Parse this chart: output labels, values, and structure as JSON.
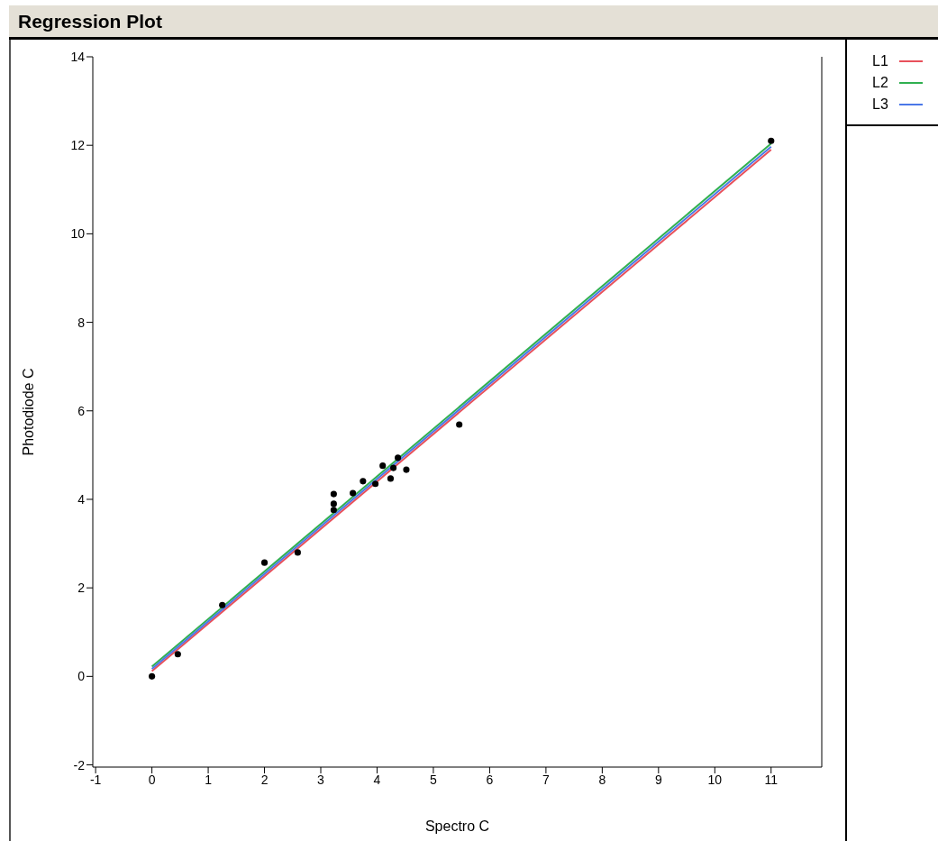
{
  "chart_data": {
    "type": "scatter",
    "title": "Regression Plot",
    "xlabel": "Spectro C",
    "ylabel": "Photodiode C",
    "xlim": [
      -1.05,
      11.9
    ],
    "xticks": [
      -1,
      0,
      1,
      2,
      3,
      4,
      5,
      6,
      7,
      8,
      9,
      10,
      11
    ],
    "ylim": [
      -2.05,
      14
    ],
    "yticks": [
      -2,
      0,
      2,
      4,
      6,
      8,
      10,
      12,
      14
    ],
    "grid": false,
    "legend": "top right",
    "series": [
      {
        "marker": "circle",
        "color": "#000000",
        "x": [
          0,
          0.46,
          1.25,
          2.0,
          2.59,
          3.23,
          3.23,
          3.23,
          3.57,
          3.75,
          3.97,
          4.1,
          4.24,
          4.29,
          4.37,
          4.52,
          5.46,
          11.0
        ],
        "values": [
          0,
          0.5,
          1.61,
          2.57,
          2.8,
          4.12,
          3.9,
          3.76,
          4.14,
          4.41,
          4.35,
          4.76,
          4.47,
          4.71,
          4.94,
          4.67,
          5.69,
          12.1
        ]
      },
      {
        "type": "line",
        "marker": "none",
        "name": "L1",
        "color": "#e8505b",
        "x": [
          0,
          11
        ],
        "values": [
          0.12,
          11.9
        ]
      },
      {
        "type": "line",
        "marker": "none",
        "name": "L2",
        "color": "#30b050",
        "x": [
          0,
          11
        ],
        "values": [
          0.22,
          12.04
        ]
      },
      {
        "type": "line",
        "marker": "none",
        "name": "L3",
        "color": "#4a78e8",
        "x": [
          0,
          11
        ],
        "values": [
          0.17,
          11.97
        ]
      }
    ]
  }
}
